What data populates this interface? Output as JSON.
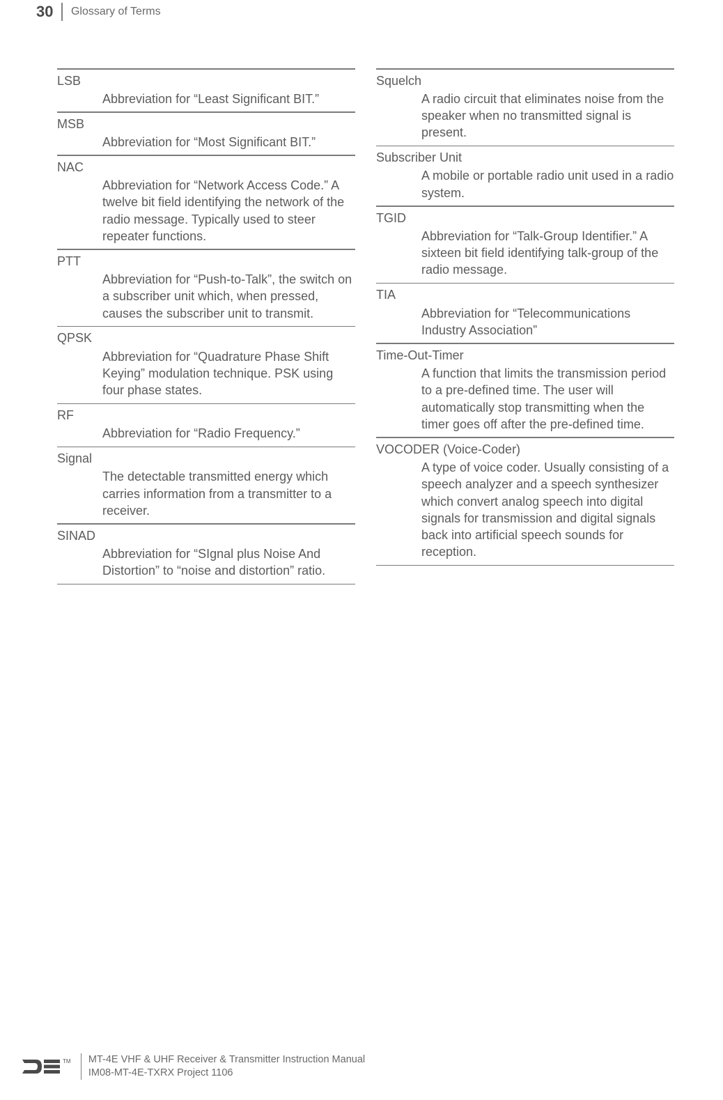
{
  "header": {
    "page_number": "30",
    "section_title": "Glossary of Terms"
  },
  "column_left": [
    {
      "term": "LSB",
      "definition": "Abbreviation for “Least Significant BIT.”"
    },
    {
      "term": "MSB",
      "definition": "Abbreviation for “Most Significant BIT.”"
    },
    {
      "term": "NAC",
      "definition": "Abbreviation for “Network Access Code.” A twelve bit field identifying the network of the radio message. Typically used to steer repeater functions."
    },
    {
      "term": "PTT",
      "definition": "Abbreviation for “Push-to-Talk”, the switch on a subscriber unit which, when pressed, causes the subscriber unit to transmit."
    },
    {
      "term": "QPSK",
      "definition": "Abbreviation for “Quadrature Phase Shift Keying” modulation technique. PSK using four phase states."
    },
    {
      "term": "RF",
      "definition": "Abbreviation for “Radio Frequency.”"
    },
    {
      "term": "Signal",
      "definition": "The detectable transmitted energy which carries information from a transmitter to a receiver."
    },
    {
      "term": "SINAD",
      "definition": "Abbreviation for “SIgnal plus Noise And Distortion” to “noise and distortion” ratio."
    }
  ],
  "column_right": [
    {
      "term": "Squelch",
      "definition": "A radio circuit that eliminates noise from the speaker when no transmitted signal is present."
    },
    {
      "term": "Subscriber Unit",
      "definition": "A mobile or portable radio unit used in a radio system."
    },
    {
      "term": "TGID",
      "definition": "Abbreviation for “Talk-Group Identifier.” A sixteen bit field identifying talk-group of the radio message."
    },
    {
      "term": "TIA",
      "definition": "Abbreviation for “Telecommunications Industry Association”"
    },
    {
      "term": "Time-Out-Timer",
      "definition": "A function that limits the transmission period to a pre-defined time. The user will automatically stop transmitting when the timer goes off after the pre-defined time."
    },
    {
      "term": "VOCODER (Voice-Coder)",
      "definition": "A type of voice coder. Usually consisting of a speech analyzer and a speech synthesizer which convert analog speech into digital signals for transmission and digital signals back into artificial speech sounds for reception."
    }
  ],
  "footer": {
    "manual_title": "MT-4E VHF & UHF Receiver & Transmitter Instruction Manual",
    "project_code": "IM08-MT-4E-TXRX Project 1106",
    "trademark": "TM"
  }
}
